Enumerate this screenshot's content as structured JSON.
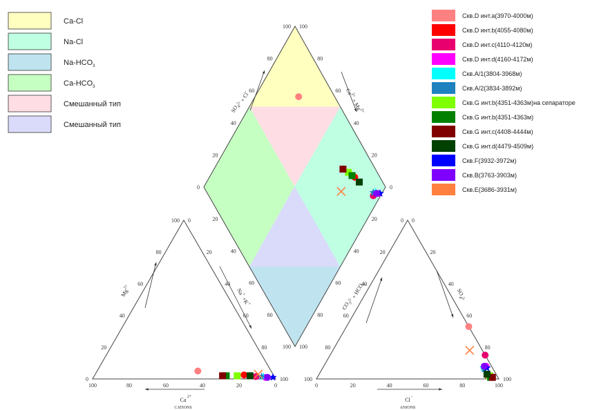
{
  "chart_data": {
    "type": "scatter",
    "subtype": "piper",
    "zone_legend": [
      {
        "label": "Ca-Cl",
        "color": "#FFFFC0"
      },
      {
        "label": "Na-Cl",
        "color": "#BFFFE2"
      },
      {
        "label": "Na-HCO",
        "sub": "3",
        "color": "#BFE4EF"
      },
      {
        "label": "Ca-HCO",
        "sub": "3",
        "color": "#C6FFC2"
      },
      {
        "label": "Смешанный тип",
        "color": "#FFDDE5"
      },
      {
        "label": "Смешанный тип",
        "color": "#DADAFB"
      }
    ],
    "series": [
      {
        "name": "Скв.D инт.a(3970-4000м)",
        "color": "#FF8080",
        "marker": "circle",
        "diamond": [
          0.8,
          0.76
        ],
        "cation": [
          0.4,
          0.05
        ],
        "anion": [
          0.67,
          0.33
        ]
      },
      {
        "name": "Скв.D инт.b(4055-4080м)",
        "color": "#FF0000",
        "marker": "circle",
        "diamond": [
          0.86,
          0.2
        ],
        "cation": [
          0.16,
          0.025
        ],
        "anion": [
          0.93,
          0.02
        ]
      },
      {
        "name": "Скв.D инт.c(4110-4120м)",
        "color": "#E8006E",
        "marker": "circle",
        "diamond": [
          0.905,
          0.04
        ],
        "cation": [
          0.1,
          0.015
        ],
        "anion": [
          0.85,
          0.15
        ]
      },
      {
        "name": "Скв.D инт.d(4160-4172м)",
        "color": "#FF00FF",
        "marker": "circle",
        "diamond": [
          0.94,
          0.02
        ],
        "cation": [
          0.05,
          0.01
        ],
        "anion": [
          0.89,
          0.08
        ]
      },
      {
        "name": "Скв.A/1(3804-3968м)",
        "color": "#00FFFF",
        "marker": "star",
        "diamond": [
          0.93,
          0.04
        ],
        "cation": [
          0.06,
          0.015
        ],
        "anion": [
          0.88,
          0.07
        ]
      },
      {
        "name": "Скв.A/2(3834-3892м)",
        "color": "#1F82C0",
        "marker": "star",
        "diamond": [
          0.915,
          0.05
        ],
        "cation": [
          0.07,
          0.015
        ],
        "anion": [
          0.89,
          0.06
        ]
      },
      {
        "name": "Скв.G инт.b(4351-4363м)на сепараторе",
        "color": "#80FF00",
        "marker": "square",
        "diamond": [
          0.84,
          0.25
        ],
        "cation": [
          0.2,
          0.02
        ],
        "anion": [
          0.94,
          0.02
        ]
      },
      {
        "name": "Скв.G инт.b(4351-4363м)",
        "color": "#008000",
        "marker": "square",
        "diamond": [
          0.85,
          0.22
        ],
        "cation": [
          0.26,
          0.02
        ],
        "anion": [
          0.95,
          0.01
        ]
      },
      {
        "name": "Скв.G инт.c(4408-4444м)",
        "color": "#800000",
        "marker": "square",
        "diamond": [
          0.82,
          0.29
        ],
        "cation": [
          0.28,
          0.02
        ],
        "anion": [
          0.96,
          0.01
        ]
      },
      {
        "name": "Скв.G инт.d(4479-4509м)",
        "color": "#004000",
        "marker": "square",
        "diamond": [
          0.87,
          0.16
        ],
        "cation": [
          0.13,
          0.02
        ],
        "anion": [
          0.92,
          0.03
        ]
      },
      {
        "name": "Скв.F(3932-3972м)",
        "color": "#0000FF",
        "marker": "star",
        "diamond": [
          0.95,
          0.01
        ],
        "cation": [
          0.01,
          0.01
        ],
        "anion": [
          0.9,
          0.07
        ]
      },
      {
        "name": "Скв.B(3763-3903м)",
        "color": "#8000FF",
        "marker": "circle",
        "diamond": [
          0.93,
          0.03
        ],
        "cation": [
          0.04,
          0.01
        ],
        "anion": [
          0.88,
          0.08
        ]
      },
      {
        "name": "Скв.E(3686-3931м)",
        "color": "#FF8040",
        "marker": "x",
        "diamond": [
          0.74,
          0.23
        ],
        "cation": [
          0.08,
          0.03
        ],
        "anion": [
          0.75,
          0.18
        ]
      }
    ],
    "tick_values": [
      "0",
      "20",
      "40",
      "60",
      "80",
      "100"
    ],
    "axis_labels": {
      "cations_bottom": "Ca",
      "cations_bottom_sup": "2+",
      "cations_bottom_sub": "CATIONS",
      "cations_left": "Mg",
      "cations_left_sup": "2+",
      "cations_right": "Na",
      "cations_right_sup": "+",
      "cations_right2": "+K",
      "cations_right2_sup": "+",
      "anions_bottom": "Cl",
      "anions_bottom_sup": "-",
      "anions_bottom_sub": "ANIONS",
      "anions_left": "CO",
      "anions_left_sub": "3",
      "anions_left_sup": "2-",
      "anions_left2": "+ HCO",
      "anions_left2_sub": "3",
      "anions_left2_sup": "-",
      "anions_right": "SO",
      "anions_right_sub": "4",
      "anions_right_sup": "2-",
      "diamond_left": "SO",
      "diamond_left_sub": "4",
      "diamond_left_sup": "2-",
      "diamond_left2": "+ Cl",
      "diamond_left2_sup": "-",
      "diamond_right": "Ca",
      "diamond_right_sup": "2+",
      "diamond_right2": "+ Mg",
      "diamond_right2_sup": "2+"
    }
  }
}
